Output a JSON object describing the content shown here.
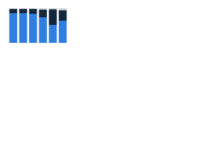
{
  "chart_data": {
    "type": "stacked_bar",
    "categories": [
      null,
      null,
      null,
      null,
      null,
      null
    ],
    "series": [
      {
        "color": "#2f7ee0",
        "values": [
          86,
          86,
          84,
          74,
          52,
          64
        ]
      },
      {
        "color": "#14273d",
        "values": [
          12,
          12,
          14,
          22,
          45,
          30
        ]
      },
      {
        "color": "#c9ccd1",
        "values": [
          2,
          2,
          2,
          4,
          3,
          6
        ]
      }
    ],
    "ylim": [
      0,
      100
    ]
  }
}
